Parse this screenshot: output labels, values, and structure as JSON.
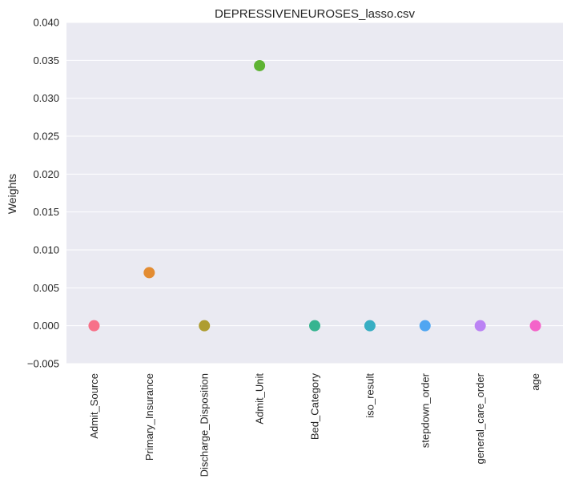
{
  "chart_data": {
    "type": "scatter",
    "title": "DEPRESSIVENEUROSES_lasso.csv",
    "xlabel": "",
    "ylabel": "Weights",
    "categories": [
      "Admit_Source",
      "Primary_Insurance",
      "Discharge_Disposition",
      "Admit_Unit",
      "Bed_Category",
      "iso_result",
      "stepdown_order",
      "general_care_order",
      "age"
    ],
    "values": [
      0.0,
      0.007,
      0.0,
      0.0343,
      0.0,
      0.0,
      0.0,
      0.0,
      0.0
    ],
    "colors": [
      "#f77189",
      "#e38c32",
      "#ae9d31",
      "#5eb333",
      "#37b490",
      "#38aec3",
      "#50a6f2",
      "#bb83f4",
      "#f464c9"
    ],
    "ylim": [
      -0.005,
      0.04
    ],
    "yticks": [
      -0.005,
      0.0,
      0.005,
      0.01,
      0.015,
      0.02,
      0.025,
      0.03,
      0.035,
      0.04
    ],
    "ytick_labels": [
      "−0.005",
      "0.000",
      "0.005",
      "0.010",
      "0.015",
      "0.020",
      "0.025",
      "0.030",
      "0.035",
      "0.040"
    ],
    "grid": true
  }
}
